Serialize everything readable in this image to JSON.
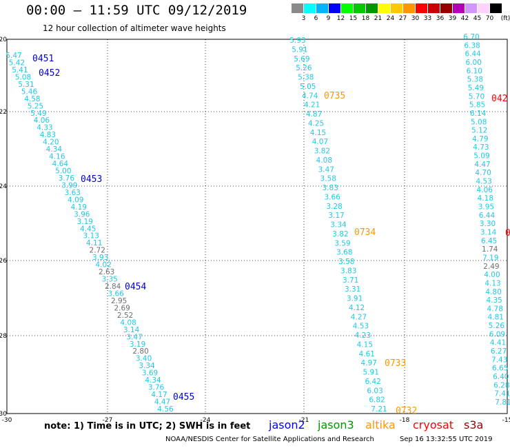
{
  "title": "00:00 – 11:59 UTC 09/12/2019",
  "subtitle": "12 hour collection of altimeter wave heights",
  "scale": {
    "labels": [
      "3",
      "6",
      "9",
      "12",
      "15",
      "18",
      "21",
      "24",
      "27",
      "30",
      "33",
      "36",
      "39",
      "42",
      "45",
      "70",
      "(ft)"
    ],
    "colors": [
      "#8a8a8a",
      "#00ffff",
      "#00b4ff",
      "#0000ff",
      "#00ff00",
      "#00c800",
      "#009600",
      "#ffff00",
      "#ffc800",
      "#ff9600",
      "#ff0000",
      "#c80000",
      "#960000",
      "#b400b4",
      "#d296ff",
      "#ffd2ff",
      "#000000"
    ]
  },
  "axes": {
    "lon_labels": [
      "-30",
      "-27",
      "-24",
      "-21",
      "-18",
      "-15"
    ],
    "lat_labels": [
      "-20",
      "-22",
      "-24",
      "-26",
      "-28",
      "-30"
    ]
  },
  "tracks": [
    {
      "id": "t1",
      "color": "#00b4ff",
      "x0": 20,
      "x1": 240,
      "y0": 84,
      "y1": 597,
      "values": [
        "5.47",
        "5.42",
        "5.41",
        "5.08",
        "5.31",
        "5.46",
        "4.58",
        "5.25",
        "5.49",
        "4.06",
        "4.33",
        "4.83",
        "4.20",
        "4.34",
        "4.16",
        "4.64",
        "5.00",
        "3.76",
        "3.99",
        "3.63",
        "4.09",
        "4.19",
        "3.96",
        "3.19",
        "4.45",
        "3.13",
        "4.11",
        "2.72",
        "3.93",
        "4.02",
        "2.63",
        "3.35",
        "2.84",
        "3.66",
        "2.95",
        "2.69",
        "2.52",
        "4.08",
        "3.14",
        "3.47",
        "3.19",
        "2.80",
        "3.40",
        "3.34",
        "3.69",
        "4.34",
        "3.76",
        "4.17",
        "4.47",
        "4.56"
      ],
      "gray": [
        "2.72",
        "2.63",
        "2.84",
        "2.95",
        "2.69",
        "2.52",
        "2.80"
      ]
    },
    {
      "id": "t2",
      "color": "#00b4ff",
      "x0": 432,
      "x1": 550,
      "y0": 62,
      "y1": 597,
      "values": [
        "5.93",
        "5.91",
        "5.69",
        "5.26",
        "5.38",
        "5.05",
        "4.74",
        "4.21",
        "4.87",
        "4.25",
        "4.15",
        "4.07",
        "3.82",
        "4.08",
        "3.47",
        "3.58",
        "3.83",
        "3.66",
        "3.28",
        "3.17",
        "3.34",
        "3.82",
        "3.59",
        "3.68",
        "3.58",
        "3.83",
        "3.71",
        "3.31",
        "3.91",
        "4.12",
        "4.27",
        "4.53",
        "4.23",
        "4.15",
        "4.61",
        "4.97",
        "5.91",
        "6.42",
        "6.03",
        "6.82",
        "7.21"
      ],
      "gray": []
    },
    {
      "id": "t3",
      "color": "#00b4ff",
      "x0": 684,
      "x1": 730,
      "y0": 57,
      "y1": 587,
      "values": [
        "6.70",
        "6.38",
        "6.44",
        "6.00",
        "6.10",
        "5.38",
        "5.49",
        "5.70",
        "5.85",
        "6.14",
        "5.08",
        "5.12",
        "4.79",
        "4.73",
        "5.09",
        "4.47",
        "4.70",
        "4.53",
        "4.06",
        "4.18",
        "3.95",
        "6.44",
        "3.30",
        "3.14",
        "6.45",
        "1.74",
        "7.19",
        "2.49",
        "4.00",
        "4.13",
        "4.80",
        "4.35",
        "4.78",
        "4.81",
        "5.26",
        "6.09",
        "4.41",
        "6.27",
        "7.43",
        "6.65",
        "6.40",
        "6.28",
        "7.41",
        "7.81"
      ],
      "gray": [
        "2.49",
        "1.74"
      ]
    }
  ],
  "times": [
    {
      "label": "0451",
      "color": "#0000cc"
    },
    {
      "label": "0452",
      "color": "#0000cc"
    },
    {
      "label": "0453",
      "color": "#0000cc"
    },
    {
      "label": "0454",
      "color": "#0000cc"
    },
    {
      "label": "0455",
      "color": "#0000cc"
    },
    {
      "label": "0735",
      "color": "#ff9600"
    },
    {
      "label": "0734",
      "color": "#ff9600"
    },
    {
      "label": "0733",
      "color": "#ff9600"
    },
    {
      "label": "0732",
      "color": "#ff9600"
    },
    {
      "label": "042",
      "color": "#ff0000"
    },
    {
      "label": "0",
      "color": "#ff0000"
    }
  ],
  "note": "note:  1) Time is in UTC;  2) SWH is in feet",
  "legend": [
    {
      "label": "jason2",
      "color": "#0000ff"
    },
    {
      "label": "jason3",
      "color": "#009600"
    },
    {
      "label": "altika",
      "color": "#ff9600"
    },
    {
      "label": "cryosat",
      "color": "#ff0000"
    },
    {
      "label": "s3a",
      "color": "#960000"
    }
  ],
  "credit": "NOAA/NESDIS Center for Satellite Applications and Research",
  "stamp": "Sep 16 13:32:55 UTC 2019"
}
